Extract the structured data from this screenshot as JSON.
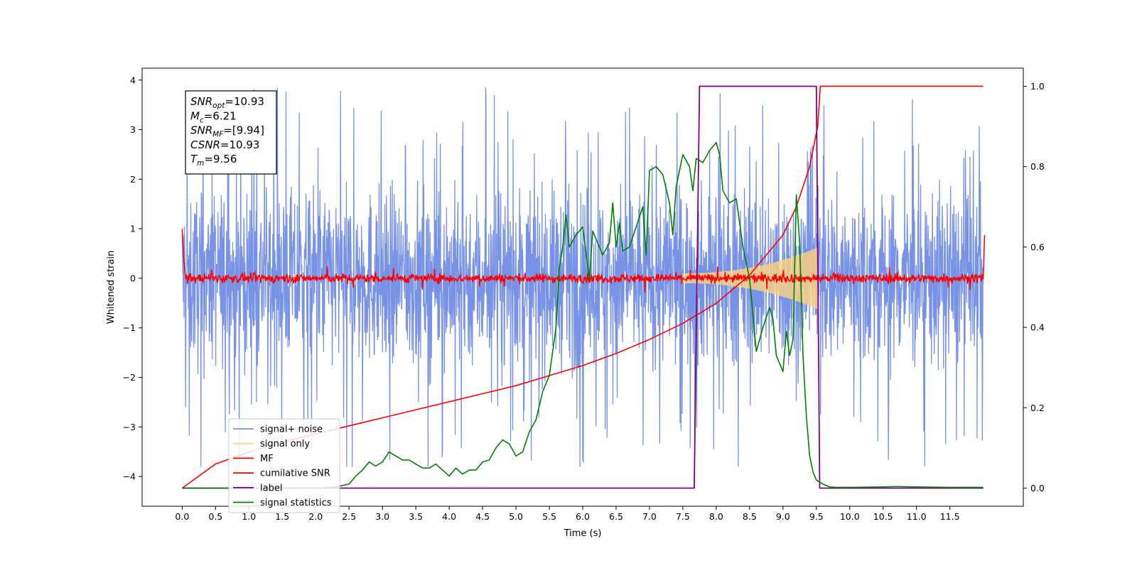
{
  "chart_data": {
    "type": "line",
    "xlabel": "Time (s)",
    "ylabel": "Whitened strain",
    "xlim": [
      -0.6,
      12.6
    ],
    "ylim": [
      -4.6,
      4.24
    ],
    "y2lim": [
      -0.045,
      1.045
    ],
    "x_ticks": [
      0.0,
      0.5,
      1.0,
      1.5,
      2.0,
      2.5,
      3.0,
      3.5,
      4.0,
      4.5,
      5.0,
      5.5,
      6.0,
      6.5,
      7.0,
      7.5,
      8.0,
      8.5,
      9.0,
      9.5,
      10.0,
      10.5,
      11.0,
      11.5
    ],
    "x_tick_labels": [
      "0.0",
      "0.5",
      "1.0",
      "1.5",
      "2.0",
      "2.5",
      "3.0",
      "3.5",
      "4.0",
      "4.5",
      "5.0",
      "5.5",
      "6.0",
      "6.5",
      "7.0",
      "7.5",
      "8.0",
      "8.5",
      "9.0",
      "9.5",
      "10.0",
      "10.5",
      "11.0",
      "11.5"
    ],
    "y_ticks": [
      -4,
      -3,
      -2,
      -1,
      0,
      1,
      2,
      3,
      4
    ],
    "y_tick_labels": [
      "−4",
      "−3",
      "−2",
      "−1",
      "0",
      "1",
      "2",
      "3",
      "4"
    ],
    "y2_ticks": [
      0.0,
      0.2,
      0.4,
      0.6,
      0.8,
      1.0
    ],
    "y2_tick_labels": [
      "0.0",
      "0.2",
      "0.4",
      "0.6",
      "0.8",
      "1.0"
    ],
    "grid": false,
    "legend_position": "lower-left",
    "legend": [
      {
        "label": "signal+ noise",
        "color": "#7893e6"
      },
      {
        "label": "signal only",
        "color": "#ffd27f"
      },
      {
        "label": "MF",
        "color": "#ff0000"
      },
      {
        "label": "cumilative SNR",
        "color": "#ff0000"
      },
      {
        "label": "label",
        "color": "#800080"
      },
      {
        "label": "signal statistics",
        "color": "#008000"
      }
    ],
    "annotation": {
      "lines": [
        {
          "main": "SNR",
          "sub": "opt",
          "value": "=10.93"
        },
        {
          "main": "M",
          "sub": "c",
          "value": "=6.21"
        },
        {
          "main": "SNR",
          "sub": "MF",
          "value": "=[9.94]"
        },
        {
          "main": "CSNR",
          "sub": "",
          "value": "=10.93"
        },
        {
          "main": "T",
          "sub": "m",
          "value": "=9.56"
        }
      ]
    },
    "series": [
      {
        "name": "signal+ noise",
        "axis": "left",
        "color": "#7893e6",
        "description_range": [
          0.0,
          12.0
        ],
        "envelope": {
          "typical_amplitude": 2.0,
          "max_peak": 3.85,
          "min_peak": -3.8
        }
      },
      {
        "name": "signal only",
        "axis": "left",
        "color": "#ffd27f",
        "chirp": {
          "start": 7.5,
          "end": 9.52,
          "start_amplitude": 0.1,
          "end_amplitude": 0.62
        }
      },
      {
        "name": "MF",
        "axis": "left",
        "color": "#ff0000",
        "x": [
          0.0,
          0.02,
          0.05,
          12.0,
          12.02
        ],
        "y": [
          1.0,
          0.4,
          0.0,
          0.0,
          0.9
        ],
        "noise_amplitude": 0.13
      },
      {
        "name": "cumilative SNR",
        "axis": "right",
        "color": "#ff0000",
        "x": [
          0.0,
          0.5,
          1.0,
          1.5,
          2.0,
          2.5,
          3.0,
          3.5,
          4.0,
          4.5,
          5.0,
          5.5,
          6.0,
          6.5,
          7.0,
          7.5,
          8.0,
          8.5,
          9.0,
          9.2,
          9.4,
          9.52,
          9.56,
          12.0
        ],
        "y": [
          0.0,
          0.06,
          0.09,
          0.115,
          0.135,
          0.155,
          0.175,
          0.195,
          0.215,
          0.235,
          0.255,
          0.28,
          0.305,
          0.335,
          0.37,
          0.41,
          0.46,
          0.53,
          0.63,
          0.7,
          0.8,
          0.9,
          1.0,
          1.0
        ]
      },
      {
        "name": "label",
        "axis": "right",
        "color": "#800080",
        "x": [
          0.0,
          7.67,
          7.75,
          9.5,
          9.55,
          12.0
        ],
        "y": [
          0.0,
          0.0,
          1.0,
          1.0,
          0.0,
          0.0
        ]
      },
      {
        "name": "signal statistics",
        "axis": "right",
        "color": "#008000",
        "x": [
          0.0,
          1.0,
          2.0,
          2.3,
          2.5,
          2.6,
          2.7,
          2.8,
          2.9,
          3.0,
          3.1,
          3.2,
          3.3,
          3.4,
          3.5,
          3.6,
          3.7,
          3.8,
          3.9,
          4.0,
          4.1,
          4.2,
          4.3,
          4.4,
          4.5,
          4.6,
          4.7,
          4.8,
          4.9,
          5.0,
          5.1,
          5.2,
          5.3,
          5.4,
          5.5,
          5.55,
          5.6,
          5.65,
          5.7,
          5.75,
          5.8,
          5.9,
          6.0,
          6.1,
          6.15,
          6.2,
          6.3,
          6.4,
          6.45,
          6.5,
          6.55,
          6.6,
          6.7,
          6.8,
          6.9,
          6.95,
          7.0,
          7.1,
          7.2,
          7.3,
          7.35,
          7.4,
          7.5,
          7.6,
          7.65,
          7.7,
          7.8,
          7.9,
          8.0,
          8.05,
          8.1,
          8.2,
          8.3,
          8.35,
          8.4,
          8.5,
          8.6,
          8.7,
          8.8,
          8.85,
          8.9,
          9.0,
          9.05,
          9.1,
          9.15,
          9.2,
          9.25,
          9.3,
          9.35,
          9.4,
          9.45,
          9.5,
          9.6,
          9.7,
          9.8,
          10.0,
          10.5,
          10.7,
          11.0,
          11.5,
          12.0
        ],
        "y": [
          0.0,
          0.0,
          0.0,
          0.003,
          0.01,
          0.03,
          0.045,
          0.065,
          0.055,
          0.065,
          0.09,
          0.08,
          0.07,
          0.07,
          0.06,
          0.05,
          0.05,
          0.06,
          0.045,
          0.03,
          0.05,
          0.035,
          0.045,
          0.045,
          0.065,
          0.07,
          0.1,
          0.12,
          0.11,
          0.08,
          0.09,
          0.14,
          0.17,
          0.24,
          0.28,
          0.34,
          0.4,
          0.55,
          0.6,
          0.68,
          0.6,
          0.63,
          0.65,
          0.52,
          0.64,
          0.62,
          0.58,
          0.61,
          0.71,
          0.6,
          0.66,
          0.59,
          0.6,
          0.65,
          0.7,
          0.58,
          0.79,
          0.8,
          0.78,
          0.71,
          0.63,
          0.75,
          0.83,
          0.8,
          0.74,
          0.82,
          0.81,
          0.84,
          0.86,
          0.83,
          0.74,
          0.71,
          0.72,
          0.66,
          0.6,
          0.52,
          0.34,
          0.4,
          0.45,
          0.42,
          0.33,
          0.29,
          0.39,
          0.33,
          0.37,
          0.73,
          0.61,
          0.33,
          0.18,
          0.08,
          0.04,
          0.02,
          0.01,
          0.003,
          0.002,
          0.002,
          0.003,
          0.004,
          0.003,
          0.002,
          0.002
        ]
      }
    ]
  }
}
